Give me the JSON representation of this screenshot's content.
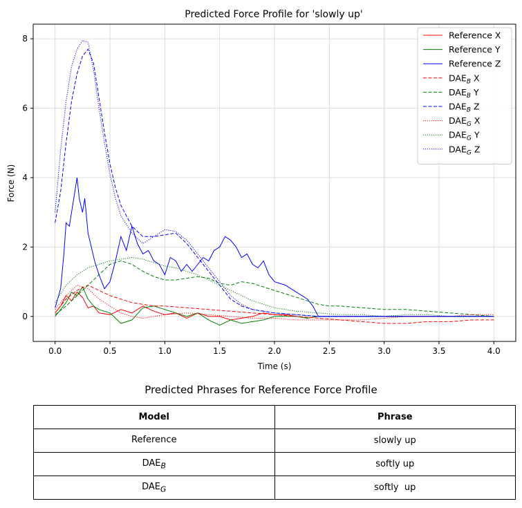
{
  "chart_data": {
    "type": "line",
    "title": "Predicted Force Profile for 'slowly up'",
    "xlabel": "Time (s)",
    "ylabel": "Force (N)",
    "xlim": [
      -0.2,
      4.2
    ],
    "ylim": [
      -0.72,
      8.42
    ],
    "xticks": [
      "0.0",
      "0.5",
      "1.0",
      "1.5",
      "2.0",
      "2.5",
      "3.0",
      "3.5",
      "4.0"
    ],
    "yticks": [
      "0",
      "2",
      "4",
      "6",
      "8"
    ],
    "grid": true,
    "legend_position": "top-right",
    "series": [
      {
        "name": "Reference X",
        "legend_main": "Reference X",
        "legend_sub": "",
        "legend_suffix": "",
        "color": "#ff0000",
        "style": "solid",
        "x": [
          0,
          0.05,
          0.1,
          0.15,
          0.2,
          0.25,
          0.3,
          0.35,
          0.4,
          0.5,
          0.6,
          0.7,
          0.8,
          0.9,
          1.0,
          1.1,
          1.2,
          1.3,
          1.4,
          1.5,
          1.6,
          1.7,
          1.8,
          1.9,
          2.0,
          2.1,
          2.2,
          2.3,
          2.4,
          2.6,
          2.8,
          3.0,
          3.2,
          3.4,
          3.6,
          3.8,
          4.0
        ],
        "y": [
          0.1,
          0.3,
          0.6,
          0.45,
          0.7,
          0.55,
          0.25,
          0.3,
          0.1,
          0.05,
          0.2,
          0.1,
          0.3,
          0.15,
          0.05,
          0.1,
          -0.05,
          0.1,
          0.0,
          0.0,
          -0.1,
          -0.05,
          0.0,
          0.1,
          0.05,
          0.05,
          0.0,
          -0.05,
          0.0,
          0.0,
          0.0,
          0.0,
          0.0,
          0.0,
          0.0,
          0.0,
          0.0
        ]
      },
      {
        "name": "Reference Y",
        "legend_main": "Reference Y",
        "legend_sub": "",
        "legend_suffix": "",
        "color": "#008000",
        "style": "solid",
        "x": [
          0,
          0.05,
          0.1,
          0.15,
          0.2,
          0.25,
          0.3,
          0.35,
          0.4,
          0.5,
          0.6,
          0.7,
          0.8,
          0.9,
          1.0,
          1.1,
          1.2,
          1.3,
          1.4,
          1.5,
          1.6,
          1.7,
          1.8,
          1.9,
          2.0,
          2.1,
          2.2,
          2.3,
          2.4,
          2.6,
          2.8,
          3.0,
          3.2,
          3.4,
          3.6,
          3.8,
          4.0
        ],
        "y": [
          0.0,
          0.2,
          0.4,
          0.7,
          0.6,
          0.85,
          0.5,
          0.3,
          0.2,
          0.1,
          -0.2,
          -0.1,
          0.25,
          0.3,
          0.2,
          0.1,
          0.0,
          0.1,
          -0.1,
          -0.25,
          -0.1,
          -0.2,
          -0.15,
          -0.1,
          0.0,
          0.0,
          0.0,
          -0.05,
          0.0,
          0.0,
          0.0,
          0.0,
          0.0,
          0.0,
          0.0,
          0.0,
          0.0
        ]
      },
      {
        "name": "Reference Z",
        "legend_main": "Reference Z",
        "legend_sub": "",
        "legend_suffix": "",
        "color": "#0000ff",
        "style": "solid",
        "x": [
          0,
          0.05,
          0.08,
          0.1,
          0.13,
          0.15,
          0.18,
          0.2,
          0.22,
          0.25,
          0.27,
          0.3,
          0.33,
          0.36,
          0.4,
          0.45,
          0.5,
          0.55,
          0.6,
          0.65,
          0.7,
          0.75,
          0.8,
          0.85,
          0.9,
          0.95,
          1.0,
          1.05,
          1.1,
          1.15,
          1.2,
          1.25,
          1.3,
          1.35,
          1.4,
          1.45,
          1.5,
          1.55,
          1.6,
          1.65,
          1.7,
          1.75,
          1.8,
          1.85,
          1.9,
          1.95,
          2.0,
          2.1,
          2.2,
          2.3,
          2.35,
          2.4,
          2.6,
          2.8,
          3.0,
          3.2,
          3.4,
          3.6,
          3.8,
          4.0
        ],
        "y": [
          0.25,
          0.8,
          1.8,
          2.7,
          2.6,
          3.0,
          3.6,
          4.0,
          3.4,
          3.0,
          3.4,
          2.4,
          2.0,
          1.6,
          1.2,
          0.8,
          1.0,
          1.6,
          2.3,
          1.9,
          2.6,
          2.1,
          1.8,
          1.9,
          1.6,
          1.5,
          1.2,
          1.7,
          1.6,
          1.3,
          1.5,
          1.3,
          1.5,
          1.7,
          1.6,
          1.9,
          2.0,
          2.3,
          2.2,
          2.0,
          1.7,
          1.8,
          1.5,
          1.4,
          1.6,
          1.2,
          1.0,
          0.9,
          0.7,
          0.5,
          0.3,
          0.0,
          0.0,
          0.0,
          0.0,
          0.0,
          0.0,
          0.0,
          0.0,
          0.0
        ]
      },
      {
        "name": "DAE_B X",
        "legend_main": "DAE",
        "legend_sub": "B",
        "legend_suffix": " X",
        "color": "#ff0000",
        "style": "dashed",
        "x": [
          0,
          0.1,
          0.2,
          0.3,
          0.4,
          0.5,
          0.6,
          0.7,
          0.8,
          0.9,
          1.0,
          1.2,
          1.4,
          1.6,
          1.8,
          2.0,
          2.2,
          2.4,
          2.6,
          2.8,
          3.0,
          3.2,
          3.4,
          3.6,
          3.8,
          4.0
        ],
        "y": [
          0.1,
          0.5,
          0.75,
          0.9,
          0.75,
          0.6,
          0.5,
          0.4,
          0.35,
          0.3,
          0.3,
          0.25,
          0.2,
          0.15,
          0.1,
          0.05,
          0.0,
          -0.05,
          -0.1,
          -0.15,
          -0.2,
          -0.2,
          -0.15,
          -0.15,
          -0.1,
          -0.1
        ]
      },
      {
        "name": "DAE_B Y",
        "legend_main": "DAE",
        "legend_sub": "B",
        "legend_suffix": " Y",
        "color": "#008000",
        "style": "dashed",
        "x": [
          0,
          0.1,
          0.2,
          0.3,
          0.4,
          0.5,
          0.6,
          0.7,
          0.8,
          0.9,
          1.0,
          1.1,
          1.2,
          1.3,
          1.4,
          1.5,
          1.6,
          1.7,
          1.8,
          1.9,
          2.0,
          2.1,
          2.2,
          2.3,
          2.4,
          2.5,
          2.6,
          2.8,
          3.0,
          3.2,
          3.4,
          3.6,
          3.8,
          4.0
        ],
        "y": [
          0.05,
          0.3,
          0.6,
          0.9,
          1.2,
          1.5,
          1.6,
          1.5,
          1.3,
          1.15,
          1.05,
          1.05,
          1.1,
          1.15,
          1.1,
          0.95,
          0.9,
          1.0,
          0.95,
          0.85,
          0.75,
          0.65,
          0.55,
          0.45,
          0.35,
          0.3,
          0.3,
          0.25,
          0.2,
          0.2,
          0.15,
          0.1,
          0.05,
          0.0
        ]
      },
      {
        "name": "DAE_B Z",
        "legend_main": "DAE",
        "legend_sub": "B",
        "legend_suffix": " Z",
        "color": "#0000ff",
        "style": "dashed",
        "x": [
          0,
          0.05,
          0.1,
          0.15,
          0.2,
          0.25,
          0.3,
          0.35,
          0.4,
          0.45,
          0.5,
          0.55,
          0.6,
          0.65,
          0.7,
          0.8,
          0.9,
          1.0,
          1.1,
          1.2,
          1.3,
          1.4,
          1.5,
          1.6,
          1.7,
          1.8,
          1.9,
          2.0,
          2.2,
          2.4,
          2.6,
          2.8,
          3.0,
          3.4,
          3.8,
          4.0
        ],
        "y": [
          2.7,
          3.6,
          5.0,
          6.2,
          7.0,
          7.5,
          7.7,
          7.3,
          6.3,
          5.3,
          4.4,
          3.7,
          3.2,
          2.9,
          2.6,
          2.3,
          2.3,
          2.35,
          2.4,
          2.1,
          1.7,
          1.3,
          0.9,
          0.5,
          0.3,
          0.2,
          0.15,
          0.1,
          0.05,
          0.0,
          0.0,
          0.0,
          0.0,
          0.0,
          0.0,
          0.0
        ]
      },
      {
        "name": "DAE_G X",
        "legend_main": "DAE",
        "legend_sub": "G",
        "legend_suffix": " X",
        "color": "#ff0000",
        "style": "dotted",
        "x": [
          0,
          0.1,
          0.2,
          0.3,
          0.4,
          0.5,
          0.6,
          0.7,
          0.8,
          0.9,
          1.0,
          1.2,
          1.4,
          1.6,
          1.8,
          2.0,
          2.2,
          2.4,
          2.6,
          2.8,
          3.0,
          3.2,
          3.4,
          3.6,
          3.8,
          4.0
        ],
        "y": [
          0.2,
          0.6,
          0.9,
          0.8,
          0.5,
          0.3,
          0.1,
          0.0,
          -0.05,
          0.0,
          0.05,
          0.1,
          0.05,
          0.0,
          -0.05,
          -0.05,
          -0.1,
          -0.1,
          -0.1,
          -0.1,
          -0.05,
          0.0,
          0.0,
          0.0,
          0.05,
          0.05
        ]
      },
      {
        "name": "DAE_G Y",
        "legend_main": "DAE",
        "legend_sub": "G",
        "legend_suffix": " Y",
        "color": "#008000",
        "style": "dotted",
        "x": [
          0,
          0.1,
          0.2,
          0.3,
          0.4,
          0.5,
          0.6,
          0.7,
          0.8,
          0.9,
          1.0,
          1.1,
          1.2,
          1.3,
          1.4,
          1.5,
          1.6,
          1.7,
          1.8,
          1.9,
          2.0,
          2.2,
          2.4,
          2.6,
          2.8,
          3.0,
          3.2,
          3.4,
          3.6,
          3.8,
          4.0
        ],
        "y": [
          0.4,
          0.9,
          1.2,
          1.4,
          1.5,
          1.6,
          1.65,
          1.7,
          1.65,
          1.55,
          1.45,
          1.4,
          1.3,
          1.2,
          1.05,
          0.9,
          0.75,
          0.6,
          0.45,
          0.35,
          0.25,
          0.15,
          0.1,
          0.05,
          0.05,
          0.0,
          0.05,
          0.05,
          0.0,
          0.0,
          0.0
        ]
      },
      {
        "name": "DAE_G Z",
        "legend_main": "DAE",
        "legend_sub": "G",
        "legend_suffix": " Z",
        "color": "#0000ff",
        "style": "dotted",
        "x": [
          0,
          0.05,
          0.1,
          0.15,
          0.2,
          0.25,
          0.3,
          0.35,
          0.4,
          0.45,
          0.5,
          0.55,
          0.6,
          0.7,
          0.8,
          0.9,
          1.0,
          1.1,
          1.2,
          1.3,
          1.4,
          1.5,
          1.6,
          1.7,
          1.8,
          1.9,
          2.0,
          2.2,
          2.4,
          2.6,
          2.8,
          3.0,
          3.4,
          3.8,
          4.0
        ],
        "y": [
          3.0,
          4.8,
          6.2,
          7.2,
          7.7,
          7.95,
          7.9,
          7.1,
          6.0,
          5.0,
          4.1,
          3.4,
          2.9,
          2.4,
          2.1,
          2.3,
          2.5,
          2.45,
          2.2,
          1.8,
          1.4,
          1.0,
          0.6,
          0.35,
          0.2,
          0.15,
          0.1,
          0.05,
          0.0,
          0.0,
          0.0,
          0.0,
          0.0,
          0.0,
          0.0
        ]
      }
    ]
  },
  "table": {
    "title": "Predicted Phrases for Reference Force Profile",
    "headers": [
      "Model",
      "Phrase"
    ],
    "rows": [
      {
        "model": "Reference",
        "model_sub": "",
        "phrase": "slowly up"
      },
      {
        "model": "DAE",
        "model_sub": "B",
        "phrase": "softly up"
      },
      {
        "model": "DAE",
        "model_sub": "G",
        "phrase": "softly  up"
      }
    ]
  }
}
